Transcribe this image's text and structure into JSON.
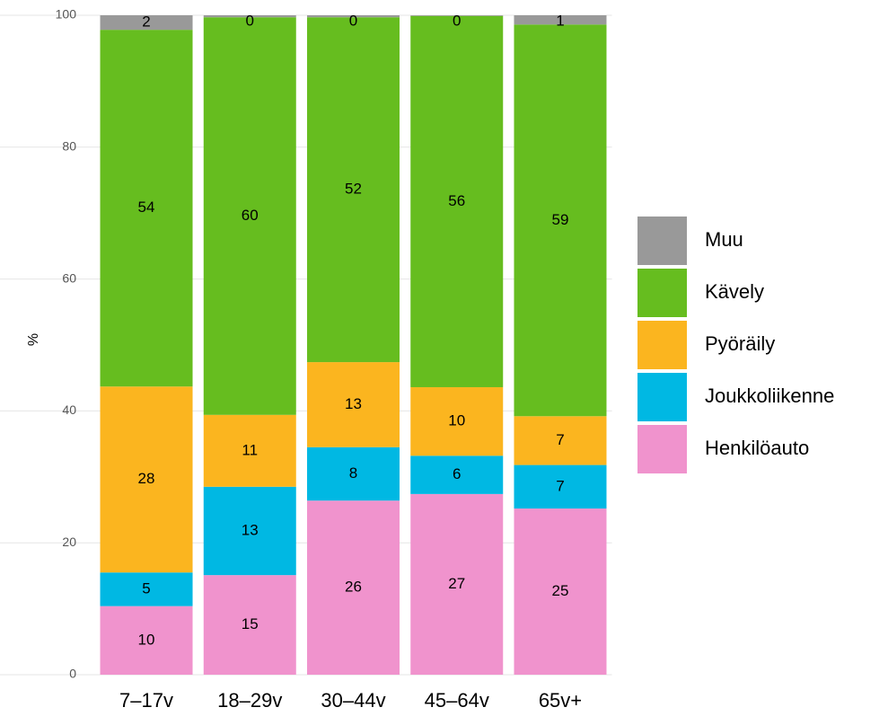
{
  "chart_data": {
    "type": "stacked_bar",
    "categories": [
      "7–17v",
      "18–29v",
      "30–44v",
      "45–64v",
      "65v+"
    ],
    "y_label": "%",
    "ylim": [
      0,
      100
    ],
    "yticks": [
      0,
      20,
      40,
      60,
      80,
      100
    ],
    "grid": true,
    "series": [
      {
        "name": "Henkilöauto",
        "color": "#f093cd",
        "values": [
          10.4,
          15.1,
          26.4,
          27.4,
          25.2
        ],
        "value_labels": [
          "10",
          "15",
          "26",
          "27",
          "25"
        ]
      },
      {
        "name": "Joukkoliikenne",
        "color": "#00b8e3",
        "values": [
          5.1,
          13.4,
          8.1,
          5.8,
          6.6
        ],
        "value_labels": [
          "5",
          "13",
          "8",
          "6",
          "7"
        ]
      },
      {
        "name": "Pyöräily",
        "color": "#fbb51f",
        "values": [
          28.2,
          10.9,
          12.9,
          10.4,
          7.4
        ],
        "value_labels": [
          "28",
          "11",
          "13",
          "10",
          "7"
        ]
      },
      {
        "name": "Kävely",
        "color": "#66bd1f",
        "values": [
          54.1,
          60.3,
          52.3,
          56.3,
          59.4
        ],
        "value_labels": [
          "54",
          "60",
          "52",
          "56",
          "59"
        ]
      },
      {
        "name": "Muu",
        "color": "#999999",
        "values": [
          2.2,
          0.3,
          0.3,
          0.1,
          1.4
        ],
        "value_labels": [
          "2",
          "0",
          "0",
          "0",
          "1"
        ]
      }
    ],
    "legend": "right"
  }
}
